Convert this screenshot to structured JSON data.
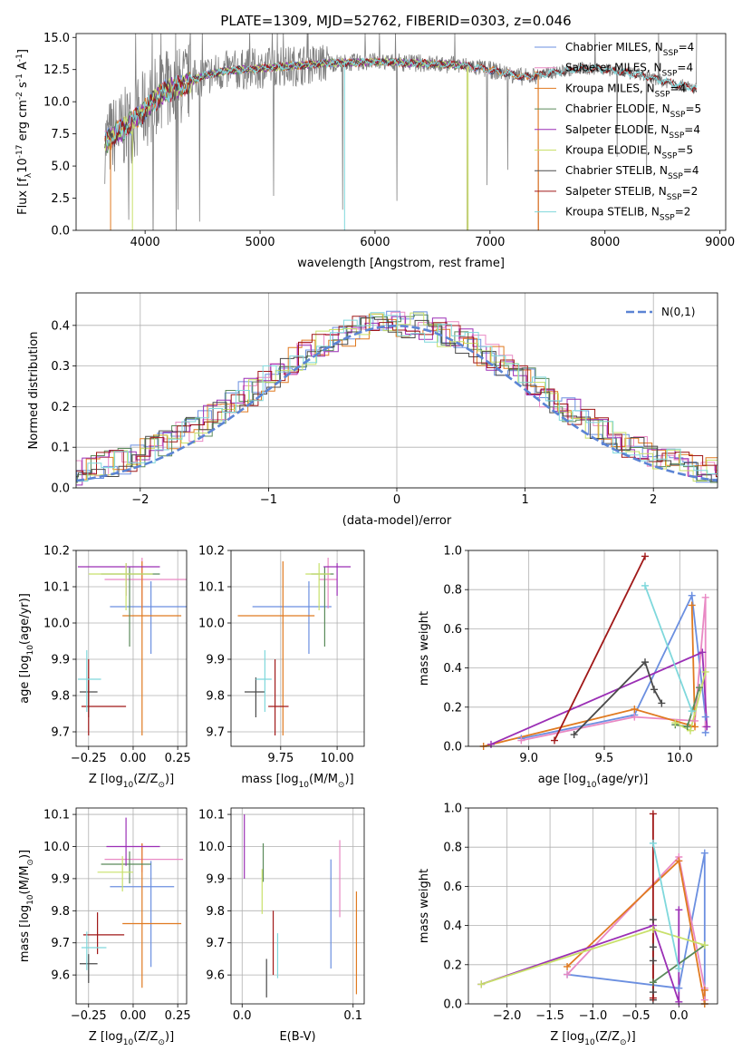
{
  "figure_title": "PLATE=1309, MJD=52762, FIBERID=0303, z=0.046",
  "models": [
    {
      "key": "CM",
      "label": "Chabrier MILES, N$_{SSP}$=4",
      "color": "#6b8fe0"
    },
    {
      "key": "SM",
      "label": "Salpeter MILES, N$_{SSP}$=4",
      "color": "#e989c4"
    },
    {
      "key": "KM",
      "label": "Kroupa MILES, N$_{SSP}$=4",
      "color": "#e07a20"
    },
    {
      "key": "CE",
      "label": "Chabrier ELODIE, N$_{SSP}$=5",
      "color": "#5a8a5a"
    },
    {
      "key": "SE",
      "label": "Salpeter ELODIE, N$_{SSP}$=4",
      "color": "#9b2fb5"
    },
    {
      "key": "KE",
      "label": "Kroupa ELODIE, N$_{SSP}$=5",
      "color": "#c8e06a"
    },
    {
      "key": "CS",
      "label": "Chabrier STELIB, N$_{SSP}$=4",
      "color": "#4a4a4a"
    },
    {
      "key": "SS",
      "label": "Salpeter STELIB, N$_{SSP}$=2",
      "color": "#a01818"
    },
    {
      "key": "KS",
      "label": "Kroupa STELIB, N$_{SSP}$=2",
      "color": "#7fd8dc"
    }
  ],
  "chart_data": [
    {
      "id": "spectrum",
      "type": "line",
      "xlabel": "wavelength [Angstrom, rest frame]",
      "ylabel": "Flux [f$_\\lambda$10$^{-17}$ erg cm$^{-2}$ s$^{-1}$ A$^{-1}$]",
      "xlim": [
        3400,
        9050
      ],
      "ylim": [
        0,
        15.3
      ],
      "xticks": [
        4000,
        5000,
        6000,
        7000,
        8000,
        9000
      ],
      "yticks": [
        0.0,
        2.5,
        5.0,
        7.5,
        10.0,
        12.5,
        15.0
      ],
      "grid": false,
      "legend": "upper right",
      "observed_color": "#808080",
      "continuum_x": [
        3650,
        3700,
        3800,
        3900,
        4000,
        4100,
        4200,
        4300,
        4400,
        4500,
        4700,
        5000,
        5300,
        5600,
        6000,
        6400,
        6800,
        7100,
        7300,
        7500,
        7800,
        8000,
        8300,
        8600,
        8800
      ],
      "continuum_y": [
        6.8,
        7.2,
        7.8,
        8.5,
        9.4,
        10.3,
        10.9,
        11.2,
        11.6,
        12.0,
        12.4,
        12.6,
        12.8,
        13.0,
        13.1,
        13.0,
        12.8,
        12.3,
        11.9,
        12.2,
        12.6,
        12.5,
        12.1,
        11.4,
        11.0
      ]
    },
    {
      "id": "residuals",
      "type": "histogram",
      "xlabel": "(data-model)/error",
      "ylabel": "Normed distribution",
      "xlim": [
        -2.5,
        2.5
      ],
      "ylim": [
        0,
        0.48
      ],
      "xticks": [
        -2,
        -1,
        0,
        1,
        2
      ],
      "yticks": [
        0.0,
        0.1,
        0.2,
        0.3,
        0.4
      ],
      "grid": true,
      "legend": "upper right",
      "reference_label": "$\\mathcal{N}(0,1)$",
      "reference_color": "#5b84d4"
    },
    {
      "id": "age_vs_Z",
      "type": "errorbar",
      "xlabel": "Z [log$_{10}$(Z/Z$_\\odot$)]",
      "ylabel": "age  [log$_{10}$(age/yr)]",
      "xlim": [
        -0.32,
        0.3
      ],
      "ylim": [
        9.66,
        10.2
      ],
      "xticks": [
        -0.25,
        0.0,
        0.25
      ],
      "yticks": [
        9.7,
        9.8,
        9.9,
        10.0,
        10.1,
        10.2
      ],
      "grid": true,
      "points": [
        {
          "m": "CM",
          "x": 0.1,
          "xerr": [
            0.23,
            0.23
          ],
          "y": 10.045,
          "yerr": [
            0.13,
            0.07
          ]
        },
        {
          "m": "SM",
          "x": 0.05,
          "xerr": [
            0.21,
            0.27
          ],
          "y": 10.12,
          "yerr": [
            0.08,
            0.06
          ]
        },
        {
          "m": "KM",
          "x": 0.05,
          "xerr": [
            0.11,
            0.22
          ],
          "y": 10.02,
          "yerr": [
            0.33,
            0.15
          ]
        },
        {
          "m": "CE",
          "x": -0.02,
          "xerr": [
            0.16,
            0.17
          ],
          "y": 10.135,
          "yerr": [
            0.2,
            0.02
          ]
        },
        {
          "m": "SE",
          "x": -0.04,
          "xerr": [
            0.27,
            0.19
          ],
          "y": 10.155,
          "yerr": [
            0.08,
            0.01
          ]
        },
        {
          "m": "KE",
          "x": -0.04,
          "xerr": [
            0.21,
            0.15
          ],
          "y": 10.135,
          "yerr": [
            0.1,
            0.03
          ]
        },
        {
          "m": "CS",
          "x": -0.25,
          "xerr": [
            0.05,
            0.05
          ],
          "y": 9.81,
          "yerr": [
            0.07,
            0.04
          ]
        },
        {
          "m": "SS",
          "x": -0.25,
          "xerr": [
            0.04,
            0.21
          ],
          "y": 9.77,
          "yerr": [
            0.08,
            0.13
          ]
        },
        {
          "m": "KS",
          "x": -0.26,
          "xerr": [
            0.05,
            0.08
          ],
          "y": 9.845,
          "yerr": [
            0.09,
            0.08
          ]
        }
      ]
    },
    {
      "id": "age_vs_mass",
      "type": "errorbar",
      "xlabel": "mass [log$_{10}$(M/M$_\\odot$)]",
      "ylabel": "",
      "xlim": [
        9.53,
        10.12
      ],
      "ylim": [
        9.66,
        10.2
      ],
      "xticks": [
        9.75,
        10.0
      ],
      "yticks": [
        9.7,
        9.8,
        9.9,
        10.0,
        10.1,
        10.2
      ],
      "grid": true,
      "points": [
        {
          "m": "CM",
          "x": 9.875,
          "xerr": [
            0.25,
            0.1
          ],
          "y": 10.045,
          "yerr": [
            0.13,
            0.07
          ]
        },
        {
          "m": "SM",
          "x": 9.96,
          "xerr": [
            0.04,
            0.04
          ],
          "y": 10.12,
          "yerr": [
            0.08,
            0.06
          ]
        },
        {
          "m": "KM",
          "x": 9.76,
          "xerr": [
            0.2,
            0.14
          ],
          "y": 10.02,
          "yerr": [
            0.33,
            0.15
          ]
        },
        {
          "m": "CE",
          "x": 9.945,
          "xerr": [
            0.06,
            0.04
          ],
          "y": 10.135,
          "yerr": [
            0.2,
            0.02
          ]
        },
        {
          "m": "SE",
          "x": 10.0,
          "xerr": [
            0.06,
            0.06
          ],
          "y": 10.155,
          "yerr": [
            0.08,
            0.01
          ]
        },
        {
          "m": "KE",
          "x": 9.92,
          "xerr": [
            0.06,
            0.05
          ],
          "y": 10.135,
          "yerr": [
            0.1,
            0.03
          ]
        },
        {
          "m": "CS",
          "x": 9.64,
          "xerr": [
            0.05,
            0.04
          ],
          "y": 9.81,
          "yerr": [
            0.07,
            0.04
          ]
        },
        {
          "m": "SS",
          "x": 9.725,
          "xerr": [
            0.03,
            0.06
          ],
          "y": 9.77,
          "yerr": [
            0.08,
            0.13
          ]
        },
        {
          "m": "KS",
          "x": 9.68,
          "xerr": [
            0.04,
            0.03
          ],
          "y": 9.845,
          "yerr": [
            0.09,
            0.08
          ]
        }
      ]
    },
    {
      "id": "weight_vs_age",
      "type": "line",
      "xlabel": "age  [log$_{10}$(age/yr)]",
      "ylabel": "mass weight",
      "xlim": [
        8.6,
        10.25
      ],
      "ylim": [
        0,
        1.0
      ],
      "xticks": [
        9.0,
        9.5,
        10.0
      ],
      "yticks": [
        0.0,
        0.2,
        0.4,
        0.6,
        0.8,
        1.0
      ],
      "grid": true,
      "series": [
        {
          "m": "CM",
          "x": [
            8.95,
            9.7,
            10.08,
            10.17,
            10.17
          ],
          "y": [
            0.04,
            0.16,
            0.77,
            0.15,
            0.07
          ]
        },
        {
          "m": "SM",
          "x": [
            8.95,
            9.7,
            10.1,
            10.17,
            10.17
          ],
          "y": [
            0.03,
            0.15,
            0.13,
            0.76,
            0.1
          ]
        },
        {
          "m": "KM",
          "x": [
            8.7,
            9.7,
            10.1,
            10.08
          ],
          "y": [
            0.0,
            0.19,
            0.1,
            0.72
          ]
        },
        {
          "m": "CE",
          "x": [
            9.97,
            10.05,
            10.13
          ],
          "y": [
            0.11,
            0.1,
            0.3
          ]
        },
        {
          "m": "SE",
          "x": [
            8.75,
            10.15,
            10.18
          ],
          "y": [
            0.01,
            0.48,
            0.1
          ]
        },
        {
          "m": "KE",
          "x": [
            9.97,
            10.07,
            10.17
          ],
          "y": [
            0.12,
            0.08,
            0.38
          ]
        },
        {
          "m": "CS",
          "x": [
            9.3,
            9.77,
            9.83,
            9.88
          ],
          "y": [
            0.06,
            0.43,
            0.29,
            0.22
          ]
        },
        {
          "m": "SS",
          "x": [
            9.17,
            9.77
          ],
          "y": [
            0.03,
            0.97
          ]
        },
        {
          "m": "KS",
          "x": [
            9.77,
            10.08
          ],
          "y": [
            0.82,
            0.18
          ]
        }
      ]
    },
    {
      "id": "mass_vs_Z",
      "type": "errorbar",
      "xlabel": "Z [log$_{10}$(Z/Z$_\\odot$)]",
      "ylabel": "mass [log$_{10}$(M/M$_\\odot$)]",
      "xlim": [
        -0.32,
        0.3
      ],
      "ylim": [
        9.51,
        10.12
      ],
      "xticks": [
        -0.25,
        0.0,
        0.25
      ],
      "yticks": [
        9.6,
        9.7,
        9.8,
        9.9,
        10.0,
        10.1
      ],
      "grid": true,
      "points": [
        {
          "m": "CM",
          "x": 0.1,
          "xerr": [
            0.23,
            0.13
          ],
          "y": 9.875,
          "yerr": [
            0.25,
            0.08
          ]
        },
        {
          "m": "SM",
          "x": 0.05,
          "xerr": [
            0.21,
            0.23
          ],
          "y": 9.96,
          "yerr": [
            0.04,
            0.05
          ]
        },
        {
          "m": "KM",
          "x": 0.05,
          "xerr": [
            0.11,
            0.22
          ],
          "y": 9.76,
          "yerr": [
            0.2,
            0.25
          ]
        },
        {
          "m": "CE",
          "x": -0.02,
          "xerr": [
            0.16,
            0.12
          ],
          "y": 9.945,
          "yerr": [
            0.06,
            0.04
          ]
        },
        {
          "m": "SE",
          "x": -0.04,
          "xerr": [
            0.11,
            0.19
          ],
          "y": 10.0,
          "yerr": [
            0.06,
            0.09
          ]
        },
        {
          "m": "KE",
          "x": -0.06,
          "xerr": [
            0.14,
            0.06
          ],
          "y": 9.92,
          "yerr": [
            0.06,
            0.05
          ]
        },
        {
          "m": "CS",
          "x": -0.25,
          "xerr": [
            0.05,
            0.05
          ],
          "y": 9.635,
          "yerr": [
            0.06,
            0.03
          ]
        },
        {
          "m": "SS",
          "x": -0.2,
          "xerr": [
            0.08,
            0.15
          ],
          "y": 9.725,
          "yerr": [
            0.06,
            0.07
          ]
        },
        {
          "m": "KS",
          "x": -0.26,
          "xerr": [
            0.03,
            0.11
          ],
          "y": 9.685,
          "yerr": [
            0.07,
            0.05
          ]
        }
      ]
    },
    {
      "id": "mass_vs_EBV",
      "type": "errorbar",
      "xlabel": "E(B-V)",
      "ylabel": "",
      "xlim": [
        -0.01,
        0.11
      ],
      "ylim": [
        9.51,
        10.12
      ],
      "xticks": [
        0.0,
        0.1
      ],
      "yticks": [
        9.6,
        9.7,
        9.8,
        9.9,
        10.0,
        10.1
      ],
      "grid": true,
      "points": [
        {
          "m": "CM",
          "x": 0.08,
          "xerr": [
            0,
            0
          ],
          "y": 9.79,
          "yerr": [
            0.17,
            0.17
          ]
        },
        {
          "m": "SM",
          "x": 0.088,
          "xerr": [
            0,
            0
          ],
          "y": 9.9,
          "yerr": [
            0.12,
            0.12
          ]
        },
        {
          "m": "KM",
          "x": 0.103,
          "xerr": [
            0,
            0
          ],
          "y": 9.7,
          "yerr": [
            0.16,
            0.16
          ]
        },
        {
          "m": "CE",
          "x": 0.019,
          "xerr": [
            0,
            0
          ],
          "y": 9.95,
          "yerr": [
            0.06,
            0.06
          ]
        },
        {
          "m": "SE",
          "x": 0.002,
          "xerr": [
            0,
            0
          ],
          "y": 10.0,
          "yerr": [
            0.1,
            0.1
          ]
        },
        {
          "m": "KE",
          "x": 0.018,
          "xerr": [
            0,
            0
          ],
          "y": 9.86,
          "yerr": [
            0.07,
            0.07
          ]
        },
        {
          "m": "CS",
          "x": 0.022,
          "xerr": [
            0,
            0
          ],
          "y": 9.59,
          "yerr": [
            0.06,
            0.06
          ]
        },
        {
          "m": "SS",
          "x": 0.028,
          "xerr": [
            0,
            0
          ],
          "y": 9.7,
          "yerr": [
            0.1,
            0.1
          ]
        },
        {
          "m": "KS",
          "x": 0.032,
          "xerr": [
            0,
            0
          ],
          "y": 9.66,
          "yerr": [
            0.07,
            0.07
          ]
        }
      ]
    },
    {
      "id": "weight_vs_Z",
      "type": "line",
      "xlabel": "Z [log$_{10}$(Z/Z$_\\odot$)]",
      "ylabel": "mass weight",
      "xlim": [
        -2.45,
        0.45
      ],
      "ylim": [
        0,
        1.0
      ],
      "xticks": [
        -2.0,
        -1.5,
        -1.0,
        -0.5,
        0.0
      ],
      "yticks": [
        0.0,
        0.2,
        0.4,
        0.6,
        0.8,
        1.0
      ],
      "grid": true,
      "series": [
        {
          "m": "CM",
          "x": [
            -1.3,
            0.0,
            0.3,
            0.3
          ],
          "y": [
            0.15,
            0.08,
            0.77,
            0.0
          ]
        },
        {
          "m": "SM",
          "x": [
            -1.3,
            0.0,
            0.3,
            0.3
          ],
          "y": [
            0.15,
            0.75,
            0.08,
            0.02
          ]
        },
        {
          "m": "KM",
          "x": [
            -1.3,
            0.0,
            0.3,
            0.3
          ],
          "y": [
            0.19,
            0.73,
            0.0,
            0.07
          ]
        },
        {
          "m": "CE",
          "x": [
            -0.3,
            0.3
          ],
          "y": [
            0.11,
            0.3
          ]
        },
        {
          "m": "SE",
          "x": [
            -2.3,
            -0.3,
            0.0,
            0.0
          ],
          "y": [
            0.1,
            0.4,
            0.01,
            0.48
          ]
        },
        {
          "m": "KE",
          "x": [
            -2.3,
            -0.3,
            0.3
          ],
          "y": [
            0.1,
            0.38,
            0.3
          ]
        },
        {
          "m": "CS",
          "x": [
            -0.3,
            -0.3,
            -0.3,
            -0.3,
            -0.3
          ],
          "y": [
            0.43,
            0.29,
            0.22,
            0.06,
            0.02
          ]
        },
        {
          "m": "SS",
          "x": [
            -0.3,
            -0.3
          ],
          "y": [
            0.97,
            0.03
          ]
        },
        {
          "m": "KS",
          "x": [
            -0.3,
            0.0
          ],
          "y": [
            0.82,
            0.18
          ]
        }
      ]
    }
  ]
}
